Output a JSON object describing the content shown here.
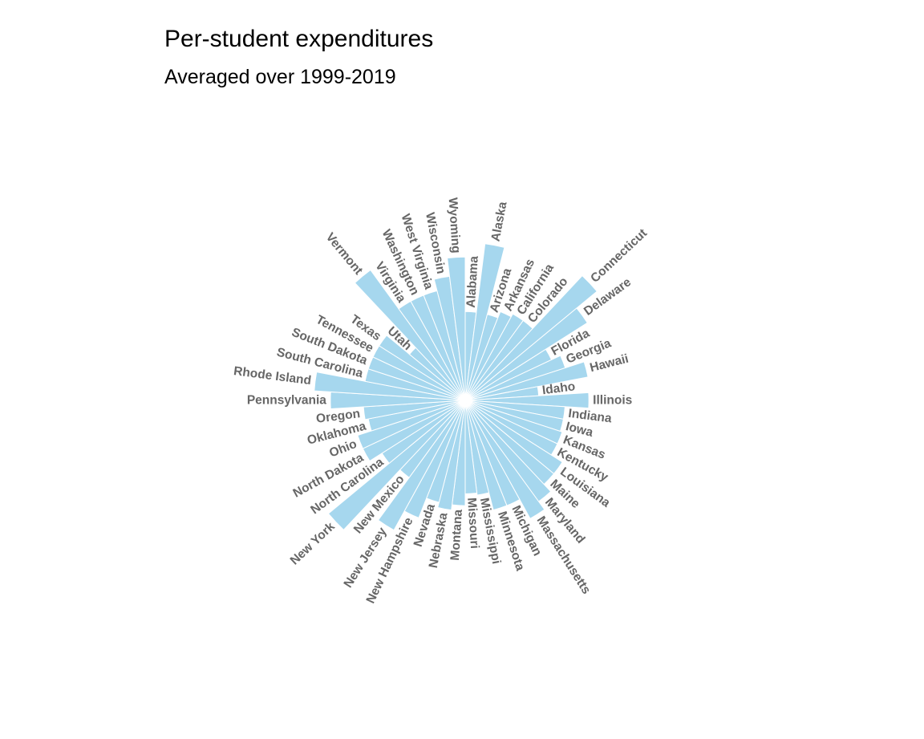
{
  "title": "Per-student expenditures",
  "subtitle": "Averaged over 1999-2019",
  "chart_data": {
    "type": "bar",
    "coord": "polar",
    "bar_color": "#a6d7ee",
    "label_color": "#666666",
    "categories": [
      "Alabama",
      "Alaska",
      "Arizona",
      "Arkansas",
      "California",
      "Colorado",
      "Connecticut",
      "Delaware",
      "Florida",
      "Georgia",
      "Hawaii",
      "Idaho",
      "Illinois",
      "Indiana",
      "Iowa",
      "Kansas",
      "Kentucky",
      "Louisiana",
      "Maine",
      "Maryland",
      "Massachusetts",
      "Michigan",
      "Minnesota",
      "Mississippi",
      "Missouri",
      "Montana",
      "Nebraska",
      "Nevada",
      "New Hampshire",
      "New Jersey",
      "New Mexico",
      "New York",
      "North Carolina",
      "North Dakota",
      "Ohio",
      "Oklahoma",
      "Oregon",
      "Pennsylvania",
      "Rhode Island",
      "South Carolina",
      "South Dakota",
      "Tennessee",
      "Texas",
      "Utah",
      "Vermont",
      "Virginia",
      "Washington",
      "West Virginia",
      "Wisconsin",
      "Wyoming"
    ],
    "values": [
      135,
      240,
      135,
      145,
      150,
      150,
      260,
      220,
      145,
      160,
      190,
      112,
      188,
      152,
      152,
      155,
      155,
      175,
      175,
      190,
      205,
      172,
      172,
      145,
      142,
      160,
      168,
      160,
      192,
      225,
      145,
      270,
      150,
      172,
      172,
      150,
      155,
      205,
      230,
      155,
      155,
      155,
      155,
      110,
      245,
      172,
      172,
      172,
      190,
      218
    ]
  }
}
